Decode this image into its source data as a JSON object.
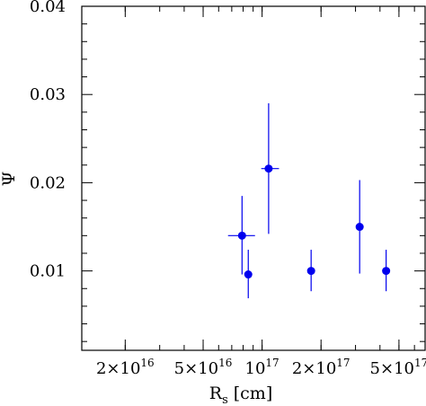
{
  "chart_data": {
    "type": "scatter",
    "xlabel": "R",
    "xlabel_sub": "s",
    "xlabel_unit": "[cm]",
    "ylabel": "Ψ",
    "xscale": "log",
    "xlim": [
      1.2e+16,
      6.8e+17
    ],
    "ylim": [
      0.001,
      0.04
    ],
    "x_ticks": [
      {
        "value": 2e+16,
        "mantissa": "2×10",
        "exp": "16"
      },
      {
        "value": 5e+16,
        "mantissa": "5×10",
        "exp": "16"
      },
      {
        "value": 1e+17,
        "mantissa": "10",
        "exp": "17"
      },
      {
        "value": 2e+17,
        "mantissa": "2×10",
        "exp": "17"
      },
      {
        "value": 5e+17,
        "mantissa": "5×10",
        "exp": "17"
      }
    ],
    "y_ticks": [
      {
        "value": 0.01,
        "label": "0.01"
      },
      {
        "value": 0.02,
        "label": "0.02"
      },
      {
        "value": 0.03,
        "label": "0.03"
      },
      {
        "value": 0.04,
        "label": "0.04"
      }
    ],
    "points": [
      {
        "x": 7.9e+16,
        "y": 0.014,
        "y_low": 0.0096,
        "y_high": 0.0185,
        "x_low": 6.7e+16,
        "x_high": 9.2e+16
      },
      {
        "x": 8.5e+16,
        "y": 0.0096,
        "y_low": 0.0069,
        "y_high": 0.0124
      },
      {
        "x": 1.08e+17,
        "y": 0.0216,
        "y_low": 0.0142,
        "y_high": 0.029,
        "x_low": 9.9e+16,
        "x_high": 1.22e+17
      },
      {
        "x": 1.78e+17,
        "y": 0.01,
        "y_low": 0.0077,
        "y_high": 0.0124
      },
      {
        "x": 3.15e+17,
        "y": 0.015,
        "y_low": 0.0097,
        "y_high": 0.0203
      },
      {
        "x": 4.3e+17,
        "y": 0.01,
        "y_low": 0.0077,
        "y_high": 0.0124
      }
    ],
    "colors": {
      "points": "#0000ee",
      "axes": "#000000"
    }
  }
}
